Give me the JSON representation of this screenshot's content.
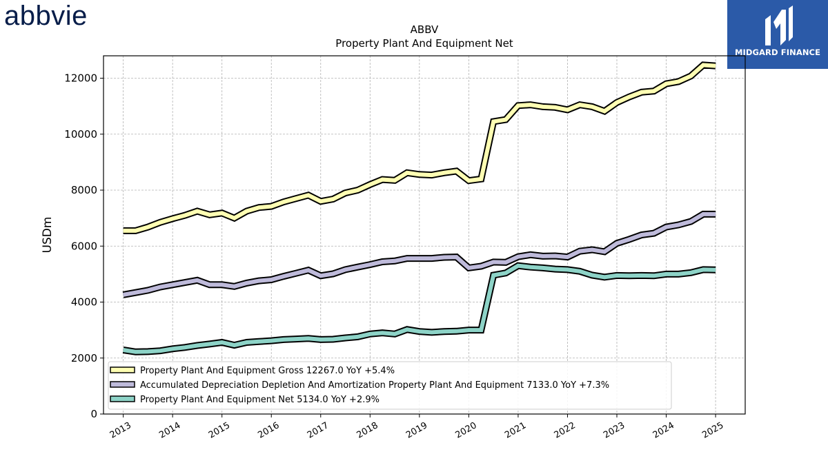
{
  "logo": {
    "text": "abbvie",
    "color": "#071d49"
  },
  "badge": {
    "text": "MIDGARD FINANCE",
    "background": "#2b5aa8"
  },
  "chart_data": {
    "type": "line",
    "title": "ABBV",
    "subtitle": "Property Plant And Equipment Net",
    "xlabel": "",
    "ylabel": "USDm",
    "xlim": [
      2012.6,
      2025.6
    ],
    "ylim": [
      0,
      12800
    ],
    "yticks": [
      0,
      2000,
      4000,
      6000,
      8000,
      10000,
      12000
    ],
    "xticks": [
      "2013",
      "2014",
      "2015",
      "2016",
      "2017",
      "2018",
      "2019",
      "2020",
      "2021",
      "2022",
      "2023",
      "2024",
      "2025"
    ],
    "grid": true,
    "legend_position": "bottom-left",
    "x": [
      2013.0,
      2013.25,
      2013.5,
      2013.75,
      2014.0,
      2014.25,
      2014.5,
      2014.75,
      2015.0,
      2015.25,
      2015.5,
      2015.75,
      2016.0,
      2016.25,
      2016.5,
      2016.75,
      2017.0,
      2017.25,
      2017.5,
      2017.75,
      2018.0,
      2018.25,
      2018.5,
      2018.75,
      2019.0,
      2019.25,
      2019.5,
      2019.75,
      2020.0,
      2020.25,
      2020.5,
      2020.75,
      2021.0,
      2021.25,
      2021.5,
      2021.75,
      2022.0,
      2022.25,
      2022.5,
      2022.75,
      2023.0,
      2023.25,
      2023.5,
      2023.75,
      2024.0,
      2024.25,
      2024.5,
      2024.75,
      2025.0
    ],
    "series": [
      {
        "name": "Property Plant And Equipment Gross",
        "legend_label": "Property Plant And Equipment Gross  12267.0 YoY +5.4%",
        "color": "#ffffb3",
        "values": [
          6550,
          6550,
          6680,
          6850,
          6980,
          7100,
          7250,
          7120,
          7180,
          7000,
          7250,
          7380,
          7420,
          7580,
          7700,
          7820,
          7600,
          7680,
          7900,
          8000,
          8200,
          8380,
          8350,
          8620,
          8560,
          8540,
          8620,
          8680,
          8340,
          8400,
          10450,
          10520,
          11020,
          11050,
          10980,
          10960,
          10870,
          11050,
          10980,
          10820,
          11130,
          11330,
          11500,
          11540,
          11800,
          11880,
          12080,
          12470,
          12440
        ]
      },
      {
        "name": "Accumulated Depreciation Depletion And Amortization Property Plant And Equipment",
        "legend_label": "Accumulated Depreciation Depletion And Amortization Property Plant And Equipment  7133.0 YoY +7.3%",
        "color": "#bebada",
        "values": [
          4260,
          4340,
          4420,
          4540,
          4620,
          4700,
          4780,
          4620,
          4620,
          4560,
          4680,
          4760,
          4800,
          4920,
          5030,
          5140,
          4940,
          5010,
          5160,
          5250,
          5340,
          5440,
          5470,
          5560,
          5560,
          5560,
          5600,
          5610,
          5220,
          5280,
          5430,
          5420,
          5620,
          5690,
          5640,
          5650,
          5610,
          5820,
          5870,
          5800,
          6100,
          6240,
          6400,
          6460,
          6680,
          6760,
          6880,
          7140,
          7140
        ]
      },
      {
        "name": "Property Plant And Equipment Net",
        "legend_label": "Property Plant And Equipment Net  5134.0 YoY +2.9%",
        "color": "#8dd3c7",
        "values": [
          2290,
          2220,
          2230,
          2260,
          2330,
          2380,
          2450,
          2500,
          2560,
          2460,
          2560,
          2590,
          2620,
          2660,
          2680,
          2700,
          2660,
          2670,
          2720,
          2760,
          2860,
          2900,
          2860,
          3020,
          2950,
          2920,
          2950,
          2960,
          3000,
          3000,
          4960,
          5040,
          5300,
          5250,
          5220,
          5180,
          5160,
          5100,
          4960,
          4890,
          4950,
          4940,
          4950,
          4940,
          5000,
          5000,
          5050,
          5160,
          5150
        ]
      }
    ]
  }
}
